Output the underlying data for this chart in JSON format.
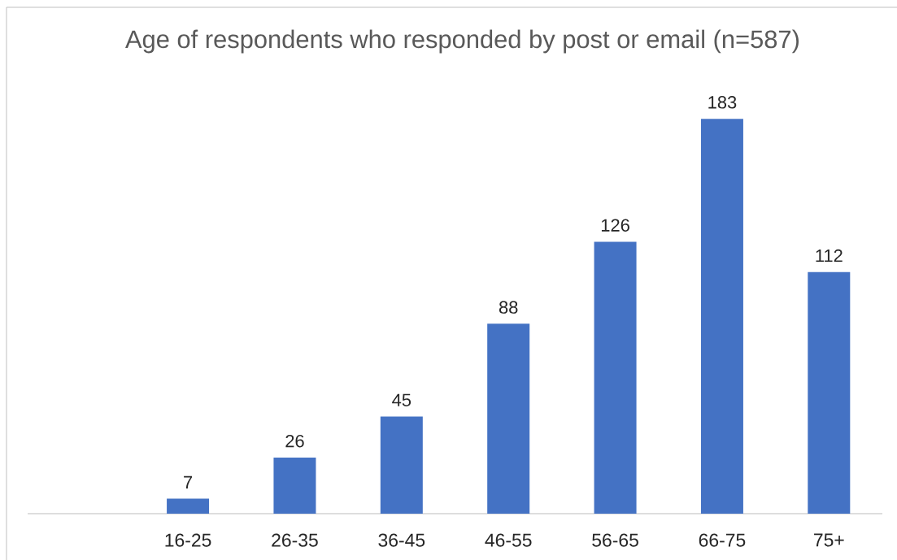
{
  "chart_data": {
    "type": "bar",
    "title": "Age of respondents who responded by post or email (n=587)",
    "categories": [
      null,
      "16-25",
      "26-35",
      "36-45",
      "46-55",
      "56-65",
      "66-75",
      "75+"
    ],
    "values": [
      null,
      7,
      26,
      45,
      88,
      126,
      183,
      112
    ],
    "color": "#4472c4",
    "data_labels": true
  }
}
